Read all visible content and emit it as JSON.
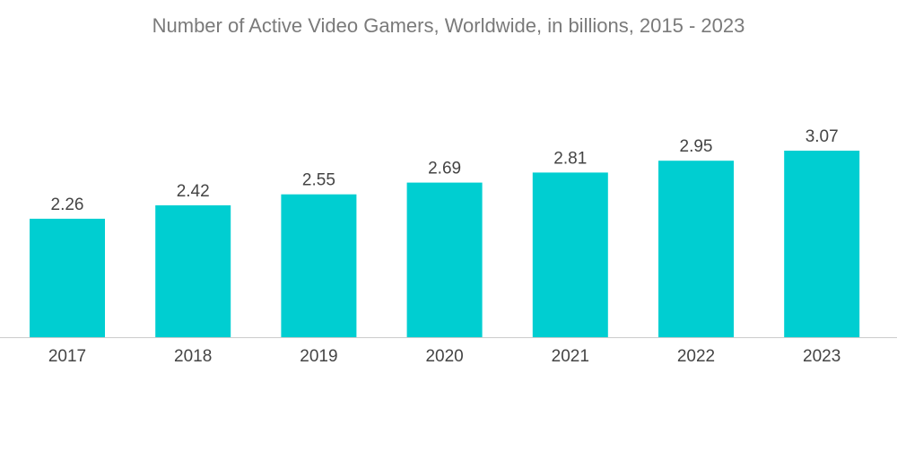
{
  "chart_data": {
    "type": "bar",
    "title": "Number of Active Video Gamers, Worldwide, in billions, 2015 - 2023",
    "categories": [
      "2017",
      "2018",
      "2019",
      "2020",
      "2021",
      "2022",
      "2023"
    ],
    "values": [
      2.26,
      2.42,
      2.55,
      2.69,
      2.81,
      2.95,
      3.07
    ],
    "value_labels": [
      "2.26",
      "2.42",
      "2.55",
      "2.69",
      "2.81",
      "2.95",
      "3.07"
    ],
    "xlabel": "",
    "ylabel": "",
    "ylim": [
      0.85,
      3.07
    ],
    "grid": false,
    "legend": "none",
    "bar_color": "#00ced1",
    "axis_color": "#cccccc"
  }
}
